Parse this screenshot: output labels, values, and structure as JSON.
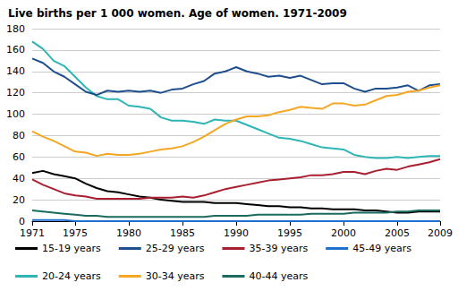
{
  "chart_data": {
    "type": "line",
    "title": "Live births per 1 000 women. Age of women. 1971-2009",
    "x": [
      1971,
      1972,
      1973,
      1974,
      1975,
      1976,
      1977,
      1978,
      1979,
      1980,
      1981,
      1982,
      1983,
      1984,
      1985,
      1986,
      1987,
      1988,
      1989,
      1990,
      1991,
      1992,
      1993,
      1994,
      1995,
      1996,
      1997,
      1998,
      1999,
      2000,
      2001,
      2002,
      2003,
      2004,
      2005,
      2006,
      2007,
      2008,
      2009
    ],
    "xlim": [
      1971,
      2009
    ],
    "xticks": [
      1971,
      1975,
      1980,
      1985,
      1990,
      1995,
      2000,
      2005,
      2009
    ],
    "ylim": [
      0,
      180
    ],
    "yticks": [
      0,
      20,
      40,
      60,
      80,
      100,
      120,
      140,
      160,
      180
    ],
    "grid": true,
    "legend": "bottom",
    "series": [
      {
        "name": "15-19 years",
        "color": "#000000",
        "values": [
          45,
          47,
          44,
          42,
          40,
          35,
          31,
          28,
          27,
          25,
          23,
          22,
          20,
          19,
          18,
          18,
          18,
          17,
          17,
          17,
          16,
          15,
          14,
          14,
          13,
          13,
          12,
          12,
          11,
          11,
          11,
          10,
          10,
          9,
          8,
          8,
          9,
          9,
          9
        ]
      },
      {
        "name": "20-24 years",
        "color": "#2eb5b5",
        "values": [
          168,
          161,
          150,
          145,
          135,
          125,
          117,
          114,
          114,
          108,
          107,
          105,
          97,
          94,
          94,
          93,
          91,
          95,
          94,
          94,
          90,
          86,
          82,
          78,
          77,
          75,
          72,
          69,
          68,
          67,
          62,
          60,
          59,
          59,
          60,
          59,
          60,
          61,
          61
        ]
      },
      {
        "name": "25-29 years",
        "color": "#1f4e8c",
        "values": [
          152,
          148,
          140,
          135,
          128,
          121,
          118,
          122,
          121,
          122,
          121,
          122,
          120,
          123,
          124,
          128,
          131,
          138,
          140,
          144,
          140,
          138,
          135,
          136,
          134,
          136,
          132,
          128,
          129,
          129,
          124,
          121,
          124,
          124,
          125,
          127,
          122,
          127,
          128
        ]
      },
      {
        "name": "30-34 years",
        "color": "#f5a623",
        "values": [
          84,
          79,
          75,
          70,
          65,
          64,
          61,
          63,
          62,
          62,
          63,
          65,
          67,
          68,
          70,
          74,
          79,
          85,
          91,
          95,
          98,
          98,
          99,
          102,
          104,
          107,
          106,
          105,
          110,
          110,
          108,
          109,
          113,
          117,
          118,
          121,
          122,
          125,
          127
        ]
      },
      {
        "name": "35-39 years",
        "color": "#a8202f",
        "values": [
          39,
          34,
          30,
          26,
          24,
          23,
          21,
          21,
          21,
          21,
          21,
          22,
          22,
          22,
          23,
          22,
          24,
          27,
          30,
          32,
          34,
          36,
          38,
          39,
          40,
          41,
          43,
          43,
          44,
          46,
          46,
          44,
          47,
          49,
          48,
          51,
          53,
          55,
          58
        ]
      },
      {
        "name": "40-44 years",
        "color": "#1a6b5e",
        "values": [
          10,
          9,
          8,
          7,
          6,
          5,
          5,
          4,
          4,
          4,
          4,
          4,
          4,
          4,
          4,
          4,
          4,
          5,
          5,
          5,
          5,
          6,
          6,
          6,
          6,
          6,
          7,
          7,
          7,
          7,
          8,
          8,
          8,
          8,
          9,
          9,
          10,
          10,
          10
        ]
      },
      {
        "name": "45-49 years",
        "color": "#1f6fd0",
        "values": [
          1,
          1,
          1,
          1,
          0,
          0,
          0,
          0,
          0,
          0,
          0,
          0,
          0,
          0,
          0,
          0,
          0,
          0,
          0,
          0,
          0,
          0,
          0,
          0,
          0,
          0,
          0,
          0,
          0,
          0,
          0,
          0,
          0,
          0,
          0,
          0,
          0,
          0,
          0
        ]
      }
    ]
  }
}
